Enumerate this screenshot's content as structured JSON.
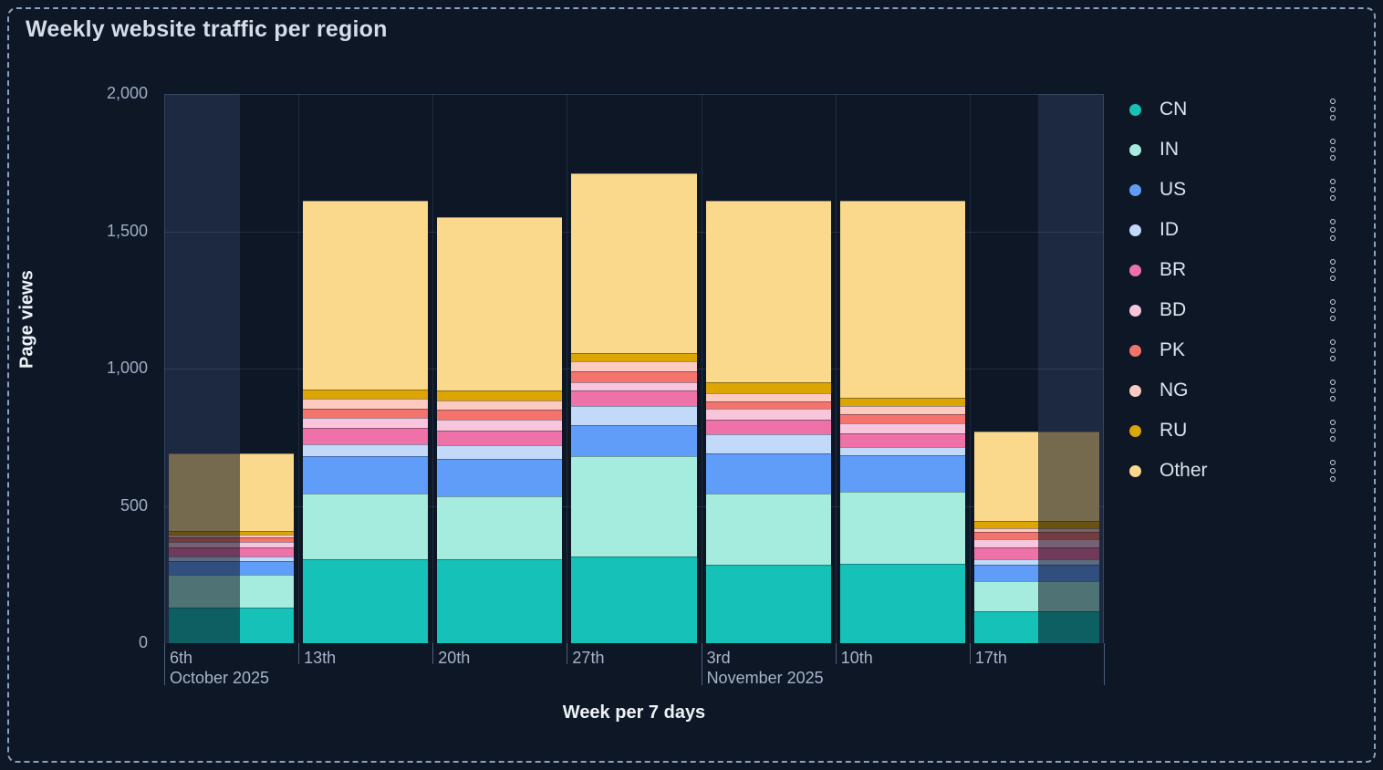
{
  "panel": {
    "title": "Weekly website traffic per region",
    "background_color": "#0d1726",
    "border_color": "#8ba0c0",
    "partial_band_color": "#1d2940"
  },
  "y_axis": {
    "title": "Page views",
    "tick_labels": [
      "2,000",
      "1,500",
      "1,000",
      "500",
      "0"
    ]
  },
  "x_axis": {
    "title": "Week per 7 days",
    "tick_labels": [
      "6th",
      "13th",
      "20th",
      "27th",
      "3rd",
      "10th",
      "17th"
    ],
    "secondary_labels": [
      {
        "text": "October 2025",
        "tick_index": 0
      },
      {
        "text": "November 2025",
        "tick_index": 4
      }
    ]
  },
  "legend": {
    "position": "right",
    "menu_icon": "kebab-menu-icon",
    "items": [
      {
        "label": "CN",
        "color": "#16c2b8"
      },
      {
        "label": "IN",
        "color": "#a5ecdf"
      },
      {
        "label": "US",
        "color": "#5f9df9"
      },
      {
        "label": "ID",
        "color": "#c3d9fa"
      },
      {
        "label": "BR",
        "color": "#ee72a7"
      },
      {
        "label": "BD",
        "color": "#f8c6dc"
      },
      {
        "label": "PK",
        "color": "#f4736c"
      },
      {
        "label": "NG",
        "color": "#fccac1"
      },
      {
        "label": "RU",
        "color": "#dda502"
      },
      {
        "label": "Other",
        "color": "#fad98c"
      }
    ]
  },
  "chart_data": {
    "type": "bar",
    "stacked": true,
    "title": "Weekly website traffic per region",
    "xlabel": "Week per 7 days",
    "ylabel": "Page views",
    "ylim": [
      0,
      2000
    ],
    "y_ticks": [
      0,
      500,
      1000,
      1500,
      2000
    ],
    "grid": true,
    "legend_position": "right",
    "categories": [
      "6th",
      "13th",
      "20th",
      "27th",
      "3rd",
      "10th",
      "17th"
    ],
    "category_groups": [
      {
        "label": "October 2025",
        "start_index": 0
      },
      {
        "label": "November 2025",
        "start_index": 4
      }
    ],
    "series": [
      {
        "name": "CN",
        "color": "#16c2b8",
        "values": [
          130,
          305,
          305,
          315,
          285,
          290,
          115
        ]
      },
      {
        "name": "IN",
        "color": "#a5ecdf",
        "values": [
          120,
          240,
          230,
          365,
          260,
          260,
          110
        ]
      },
      {
        "name": "US",
        "color": "#5f9df9",
        "values": [
          50,
          135,
          135,
          115,
          145,
          135,
          60
        ]
      },
      {
        "name": "ID",
        "color": "#c3d9fa",
        "values": [
          15,
          45,
          50,
          70,
          70,
          30,
          20
        ]
      },
      {
        "name": "BR",
        "color": "#ee72a7",
        "values": [
          35,
          60,
          55,
          55,
          55,
          50,
          45
        ]
      },
      {
        "name": "BD",
        "color": "#f8c6dc",
        "values": [
          20,
          35,
          40,
          30,
          40,
          35,
          30
        ]
      },
      {
        "name": "PK",
        "color": "#f4736c",
        "values": [
          15,
          35,
          35,
          40,
          25,
          35,
          25
        ]
      },
      {
        "name": "NG",
        "color": "#fccac1",
        "values": [
          10,
          35,
          35,
          35,
          30,
          30,
          15
        ]
      },
      {
        "name": "RU",
        "color": "#dda502",
        "values": [
          15,
          35,
          35,
          30,
          40,
          30,
          25
        ]
      },
      {
        "name": "Other",
        "color": "#fad98c",
        "values": [
          280,
          685,
          630,
          655,
          660,
          715,
          325
        ]
      }
    ],
    "totals": [
      690,
      1610,
      1550,
      1710,
      1610,
      1610,
      770
    ],
    "partial_weeks": {
      "first": {
        "category": "6th",
        "dimmed_side": "left",
        "dimmed_fraction": 0.57
      },
      "last": {
        "category": "17th",
        "dimmed_side": "right",
        "dimmed_fraction": 0.49
      }
    }
  }
}
